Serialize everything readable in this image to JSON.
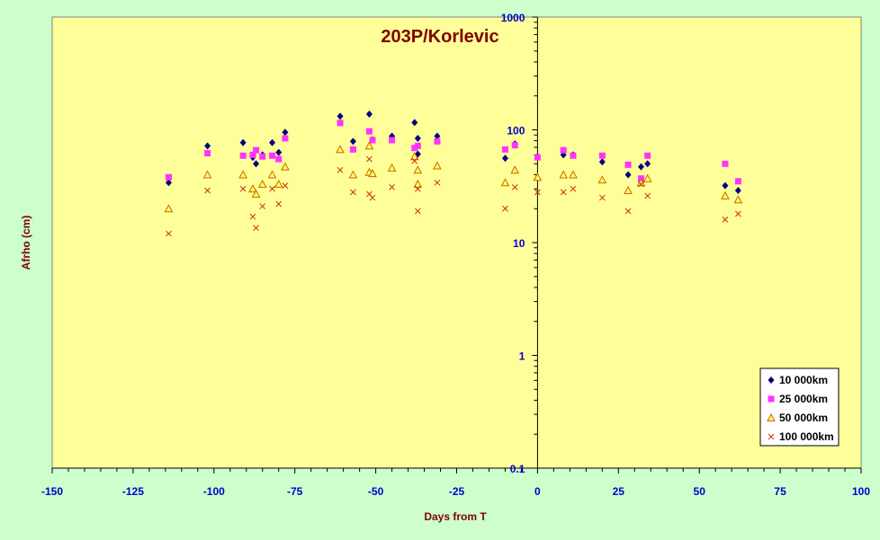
{
  "chart_data": {
    "type": "scatter",
    "title": "203P/Korlevic",
    "xlabel": "Days from T",
    "ylabel": "Afrho (cm)",
    "xlim": [
      -150,
      100
    ],
    "ylim": [
      0.1,
      1000
    ],
    "yscale": "log",
    "xticks": [
      -150,
      -125,
      -100,
      -75,
      -50,
      -25,
      0,
      25,
      50,
      75,
      100
    ],
    "yticks": [
      0.1,
      1,
      10,
      100,
      1000
    ],
    "ytick_labels": [
      "0.1",
      "1",
      "10",
      "100",
      "1000"
    ],
    "legend_position": "bottom-right",
    "series": [
      {
        "name": "10 000km",
        "marker": "diamond",
        "color": "#000080",
        "points": [
          [
            -114,
            34
          ],
          [
            -102,
            72
          ],
          [
            -91,
            77
          ],
          [
            -88,
            57
          ],
          [
            -87,
            50
          ],
          [
            -85,
            60
          ],
          [
            -82,
            77
          ],
          [
            -80,
            63
          ],
          [
            -78,
            95
          ],
          [
            -61,
            132
          ],
          [
            -57,
            79
          ],
          [
            -52,
            138
          ],
          [
            -51,
            82
          ],
          [
            -45,
            88
          ],
          [
            -38,
            116
          ],
          [
            -37,
            61
          ],
          [
            -37,
            84
          ],
          [
            -31,
            88
          ],
          [
            -10,
            56
          ],
          [
            -7,
            75
          ],
          [
            0,
            58
          ],
          [
            8,
            60
          ],
          [
            11,
            60
          ],
          [
            20,
            52
          ],
          [
            28,
            40
          ],
          [
            32,
            47
          ],
          [
            34,
            50
          ],
          [
            58,
            32
          ],
          [
            62,
            29
          ]
        ]
      },
      {
        "name": "25 000km",
        "marker": "square",
        "color": "#ff33ff",
        "points": [
          [
            -114,
            38
          ],
          [
            -102,
            62
          ],
          [
            -91,
            59
          ],
          [
            -88,
            60
          ],
          [
            -87,
            66
          ],
          [
            -85,
            58
          ],
          [
            -82,
            59
          ],
          [
            -80,
            55
          ],
          [
            -78,
            84
          ],
          [
            -61,
            115
          ],
          [
            -57,
            67
          ],
          [
            -52,
            97
          ],
          [
            -51,
            81
          ],
          [
            -45,
            81
          ],
          [
            -38,
            69
          ],
          [
            -37,
            72
          ],
          [
            -31,
            79
          ],
          [
            -10,
            67
          ],
          [
            -7,
            73
          ],
          [
            0,
            57
          ],
          [
            8,
            66
          ],
          [
            11,
            59
          ],
          [
            20,
            59
          ],
          [
            28,
            49
          ],
          [
            32,
            37
          ],
          [
            34,
            59
          ],
          [
            58,
            50
          ],
          [
            62,
            35
          ]
        ]
      },
      {
        "name": "50 000km",
        "marker": "triangle",
        "color": "#cc6600",
        "points": [
          [
            -114,
            20
          ],
          [
            -102,
            40
          ],
          [
            -91,
            40
          ],
          [
            -88,
            30
          ],
          [
            -87,
            27
          ],
          [
            -85,
            33
          ],
          [
            -82,
            40
          ],
          [
            -80,
            33
          ],
          [
            -78,
            47
          ],
          [
            -61,
            67
          ],
          [
            -57,
            40
          ],
          [
            -52,
            42
          ],
          [
            -51,
            41
          ],
          [
            -52,
            72
          ],
          [
            -45,
            46
          ],
          [
            -38,
            58
          ],
          [
            -37,
            44
          ],
          [
            -37,
            33
          ],
          [
            -31,
            48
          ],
          [
            -10,
            34
          ],
          [
            -7,
            44
          ],
          [
            0,
            38
          ],
          [
            8,
            40
          ],
          [
            11,
            40
          ],
          [
            20,
            36
          ],
          [
            28,
            29
          ],
          [
            32,
            34
          ],
          [
            34,
            37
          ],
          [
            58,
            26
          ],
          [
            62,
            24
          ]
        ]
      },
      {
        "name": "100 000km",
        "marker": "x",
        "color": "#cc3300",
        "points": [
          [
            -114,
            12
          ],
          [
            -102,
            29
          ],
          [
            -91,
            30
          ],
          [
            -88,
            17
          ],
          [
            -87,
            13.5
          ],
          [
            -85,
            21
          ],
          [
            -82,
            30
          ],
          [
            -80,
            22
          ],
          [
            -78,
            32
          ],
          [
            -61,
            44
          ],
          [
            -57,
            28
          ],
          [
            -52,
            27
          ],
          [
            -51,
            25
          ],
          [
            -52,
            55
          ],
          [
            -45,
            31
          ],
          [
            -38,
            53
          ],
          [
            -37,
            30
          ],
          [
            -37,
            19
          ],
          [
            -31,
            34
          ],
          [
            -10,
            20
          ],
          [
            -7,
            31
          ],
          [
            0,
            28
          ],
          [
            8,
            28
          ],
          [
            11,
            30
          ],
          [
            20,
            25
          ],
          [
            28,
            19
          ],
          [
            32,
            33
          ],
          [
            34,
            26
          ],
          [
            58,
            16
          ],
          [
            62,
            18
          ]
        ]
      }
    ]
  }
}
